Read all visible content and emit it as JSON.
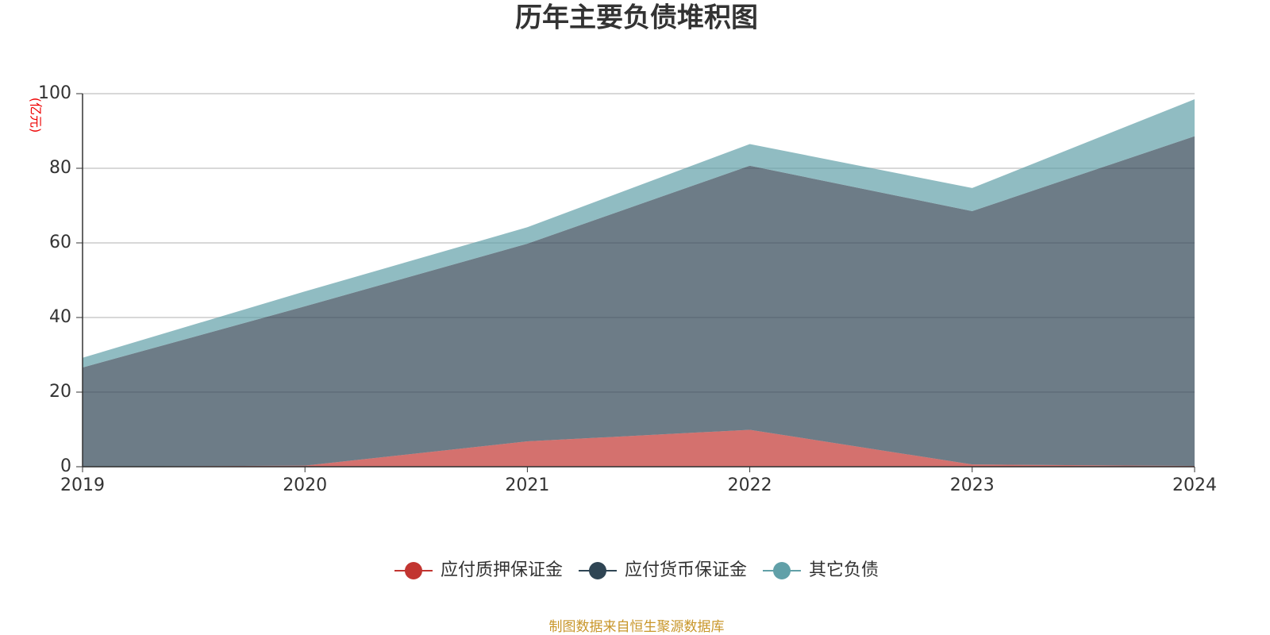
{
  "chart_data": {
    "type": "stacked_area",
    "title": "历年主要负债堆积图",
    "y_unit": "(亿元)",
    "source": "制图数据来自恒生聚源数据库",
    "categories": [
      "2019",
      "2020",
      "2021",
      "2022",
      "2023",
      "2024"
    ],
    "series": [
      {
        "name": "应付质押保证金",
        "color": "#c23531",
        "values": [
          0,
          0.3,
          6.8,
          9.9,
          0.6,
          0.2
        ]
      },
      {
        "name": "应付货币保证金",
        "color": "#2f4554",
        "values": [
          26.6,
          42.7,
          53,
          70.8,
          67.9,
          88.4
        ]
      },
      {
        "name": "其它负债",
        "color": "#61a0a8",
        "values": [
          2.6,
          4,
          4.4,
          5.8,
          6.2,
          9.9
        ]
      }
    ],
    "ylim": [
      0,
      100
    ],
    "yticks": [
      0,
      20,
      40,
      60,
      80,
      100
    ],
    "grid": true
  }
}
